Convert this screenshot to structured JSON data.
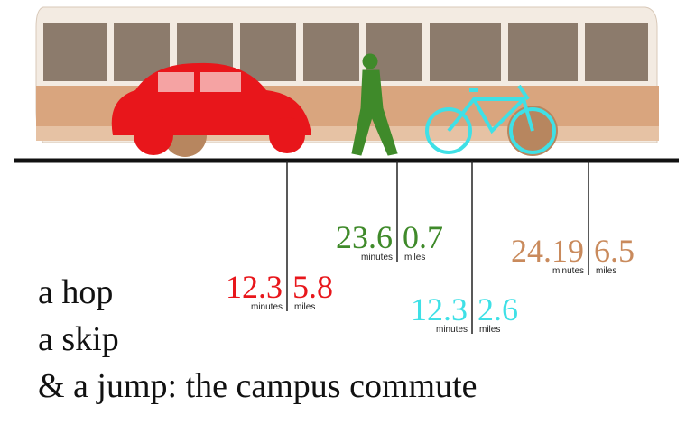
{
  "title_lines": [
    "a hop",
    "a skip",
    "& a jump: the campus commute"
  ],
  "unit_minutes": "minutes",
  "unit_miles": "miles",
  "modes": [
    {
      "minutes": 12.3,
      "miles": 5.8,
      "color": "#e8161b"
    },
    {
      "minutes": 23.6,
      "miles": 0.7,
      "color": "#3f8a2a"
    },
    {
      "minutes": 12.3,
      "miles": 2.6,
      "color": "#3fe0e6"
    },
    {
      "minutes": 24.19,
      "miles": 6.5,
      "color": "#c98a5c"
    }
  ]
}
